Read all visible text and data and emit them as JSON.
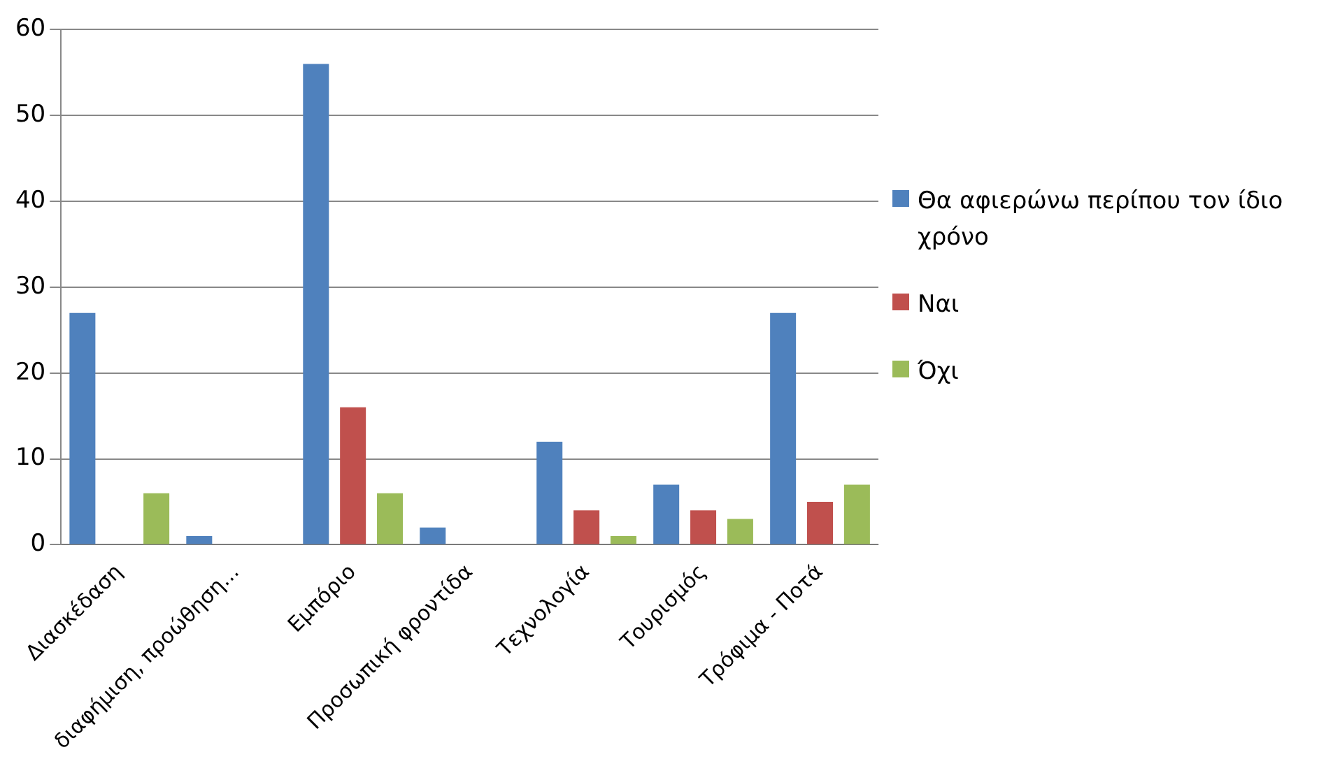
{
  "chart_data": {
    "type": "bar",
    "categories": [
      "Διασκέδαση",
      "διαφήμιση, προώθηση...",
      "Εμπόριο",
      "Προσωπική φροντίδα",
      "Τεχνολογία",
      "Τουρισμός",
      "Τρόφιμα - Ποτά"
    ],
    "series": [
      {
        "name": "Θα αφιερώνω περίπου τον ίδιο χρόνο",
        "color": "#4f81bd",
        "values": [
          27,
          1,
          56,
          2,
          12,
          7,
          27
        ]
      },
      {
        "name": "Ναι",
        "color": "#c0504d",
        "values": [
          0,
          0,
          16,
          0,
          4,
          4,
          5
        ]
      },
      {
        "name": "Όχι",
        "color": "#9bbb59",
        "values": [
          6,
          0,
          6,
          0,
          1,
          3,
          7
        ]
      }
    ],
    "ylim": [
      0,
      60
    ],
    "yticks": [
      0,
      10,
      20,
      30,
      40,
      50,
      60
    ],
    "grid": "y",
    "legend": "right"
  }
}
